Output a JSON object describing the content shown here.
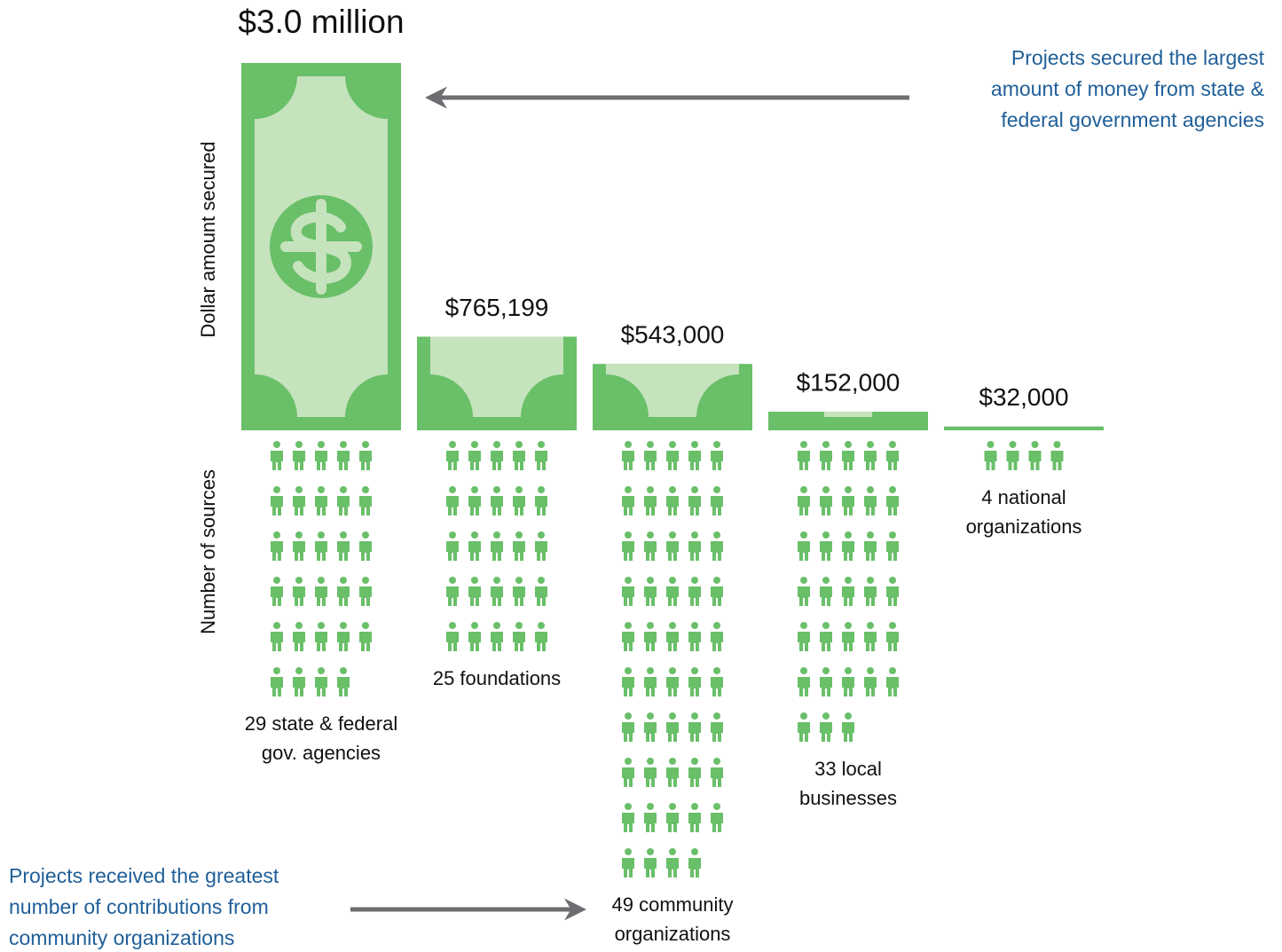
{
  "chart_data": {
    "type": "pictogram-bar",
    "y_label": "Dollar amount secured",
    "count_label": "Number of sources",
    "categories": [
      "29 state & federal gov. agencies",
      "25 foundations",
      "49 community organizations",
      "33 local businesses",
      "4 national organizations"
    ],
    "values": [
      3000000,
      765199,
      543000,
      152000,
      32000
    ],
    "value_labels": [
      "$3.0 million",
      "$765,199",
      "$543,000",
      "$152,000",
      "$32,000"
    ],
    "counts": [
      29,
      25,
      49,
      33,
      4
    ],
    "color": "#6abf69",
    "light_color": "#c5e3bd",
    "annotations": [
      {
        "lines": [
          "Projects secured the largest",
          "amount of money from state &",
          "federal government agencies"
        ],
        "color": "#1f5f99"
      },
      {
        "lines": [
          "Projects received the greatest",
          "number of contributions  from",
          "community organizations"
        ],
        "color": "#1f5f99"
      }
    ]
  }
}
